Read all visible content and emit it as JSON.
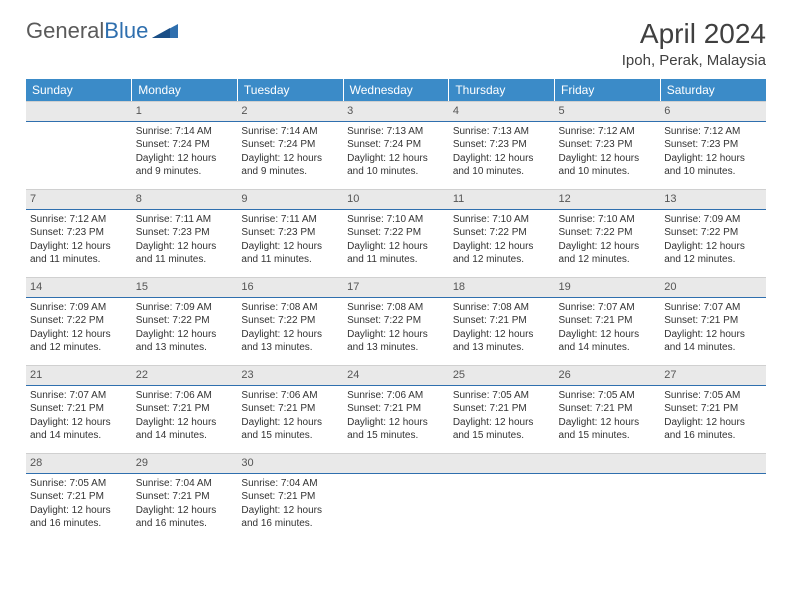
{
  "logo": {
    "text_a": "General",
    "text_b": "Blue"
  },
  "title": "April 2024",
  "location": "Ipoh, Perak, Malaysia",
  "colors": {
    "header_bg": "#3b8bc8",
    "daynum_bg": "#e9e9e9",
    "day_border": "#2f6fae",
    "text": "#333333"
  },
  "day_headers": [
    "Sunday",
    "Monday",
    "Tuesday",
    "Wednesday",
    "Thursday",
    "Friday",
    "Saturday"
  ],
  "weeks": [
    [
      {
        "n": "",
        "sr": "",
        "ss": "",
        "dl": ""
      },
      {
        "n": "1",
        "sr": "Sunrise: 7:14 AM",
        "ss": "Sunset: 7:24 PM",
        "dl": "Daylight: 12 hours and 9 minutes."
      },
      {
        "n": "2",
        "sr": "Sunrise: 7:14 AM",
        "ss": "Sunset: 7:24 PM",
        "dl": "Daylight: 12 hours and 9 minutes."
      },
      {
        "n": "3",
        "sr": "Sunrise: 7:13 AM",
        "ss": "Sunset: 7:24 PM",
        "dl": "Daylight: 12 hours and 10 minutes."
      },
      {
        "n": "4",
        "sr": "Sunrise: 7:13 AM",
        "ss": "Sunset: 7:23 PM",
        "dl": "Daylight: 12 hours and 10 minutes."
      },
      {
        "n": "5",
        "sr": "Sunrise: 7:12 AM",
        "ss": "Sunset: 7:23 PM",
        "dl": "Daylight: 12 hours and 10 minutes."
      },
      {
        "n": "6",
        "sr": "Sunrise: 7:12 AM",
        "ss": "Sunset: 7:23 PM",
        "dl": "Daylight: 12 hours and 10 minutes."
      }
    ],
    [
      {
        "n": "7",
        "sr": "Sunrise: 7:12 AM",
        "ss": "Sunset: 7:23 PM",
        "dl": "Daylight: 12 hours and 11 minutes."
      },
      {
        "n": "8",
        "sr": "Sunrise: 7:11 AM",
        "ss": "Sunset: 7:23 PM",
        "dl": "Daylight: 12 hours and 11 minutes."
      },
      {
        "n": "9",
        "sr": "Sunrise: 7:11 AM",
        "ss": "Sunset: 7:23 PM",
        "dl": "Daylight: 12 hours and 11 minutes."
      },
      {
        "n": "10",
        "sr": "Sunrise: 7:10 AM",
        "ss": "Sunset: 7:22 PM",
        "dl": "Daylight: 12 hours and 11 minutes."
      },
      {
        "n": "11",
        "sr": "Sunrise: 7:10 AM",
        "ss": "Sunset: 7:22 PM",
        "dl": "Daylight: 12 hours and 12 minutes."
      },
      {
        "n": "12",
        "sr": "Sunrise: 7:10 AM",
        "ss": "Sunset: 7:22 PM",
        "dl": "Daylight: 12 hours and 12 minutes."
      },
      {
        "n": "13",
        "sr": "Sunrise: 7:09 AM",
        "ss": "Sunset: 7:22 PM",
        "dl": "Daylight: 12 hours and 12 minutes."
      }
    ],
    [
      {
        "n": "14",
        "sr": "Sunrise: 7:09 AM",
        "ss": "Sunset: 7:22 PM",
        "dl": "Daylight: 12 hours and 12 minutes."
      },
      {
        "n": "15",
        "sr": "Sunrise: 7:09 AM",
        "ss": "Sunset: 7:22 PM",
        "dl": "Daylight: 12 hours and 13 minutes."
      },
      {
        "n": "16",
        "sr": "Sunrise: 7:08 AM",
        "ss": "Sunset: 7:22 PM",
        "dl": "Daylight: 12 hours and 13 minutes."
      },
      {
        "n": "17",
        "sr": "Sunrise: 7:08 AM",
        "ss": "Sunset: 7:22 PM",
        "dl": "Daylight: 12 hours and 13 minutes."
      },
      {
        "n": "18",
        "sr": "Sunrise: 7:08 AM",
        "ss": "Sunset: 7:21 PM",
        "dl": "Daylight: 12 hours and 13 minutes."
      },
      {
        "n": "19",
        "sr": "Sunrise: 7:07 AM",
        "ss": "Sunset: 7:21 PM",
        "dl": "Daylight: 12 hours and 14 minutes."
      },
      {
        "n": "20",
        "sr": "Sunrise: 7:07 AM",
        "ss": "Sunset: 7:21 PM",
        "dl": "Daylight: 12 hours and 14 minutes."
      }
    ],
    [
      {
        "n": "21",
        "sr": "Sunrise: 7:07 AM",
        "ss": "Sunset: 7:21 PM",
        "dl": "Daylight: 12 hours and 14 minutes."
      },
      {
        "n": "22",
        "sr": "Sunrise: 7:06 AM",
        "ss": "Sunset: 7:21 PM",
        "dl": "Daylight: 12 hours and 14 minutes."
      },
      {
        "n": "23",
        "sr": "Sunrise: 7:06 AM",
        "ss": "Sunset: 7:21 PM",
        "dl": "Daylight: 12 hours and 15 minutes."
      },
      {
        "n": "24",
        "sr": "Sunrise: 7:06 AM",
        "ss": "Sunset: 7:21 PM",
        "dl": "Daylight: 12 hours and 15 minutes."
      },
      {
        "n": "25",
        "sr": "Sunrise: 7:05 AM",
        "ss": "Sunset: 7:21 PM",
        "dl": "Daylight: 12 hours and 15 minutes."
      },
      {
        "n": "26",
        "sr": "Sunrise: 7:05 AM",
        "ss": "Sunset: 7:21 PM",
        "dl": "Daylight: 12 hours and 15 minutes."
      },
      {
        "n": "27",
        "sr": "Sunrise: 7:05 AM",
        "ss": "Sunset: 7:21 PM",
        "dl": "Daylight: 12 hours and 16 minutes."
      }
    ],
    [
      {
        "n": "28",
        "sr": "Sunrise: 7:05 AM",
        "ss": "Sunset: 7:21 PM",
        "dl": "Daylight: 12 hours and 16 minutes."
      },
      {
        "n": "29",
        "sr": "Sunrise: 7:04 AM",
        "ss": "Sunset: 7:21 PM",
        "dl": "Daylight: 12 hours and 16 minutes."
      },
      {
        "n": "30",
        "sr": "Sunrise: 7:04 AM",
        "ss": "Sunset: 7:21 PM",
        "dl": "Daylight: 12 hours and 16 minutes."
      },
      {
        "n": "",
        "sr": "",
        "ss": "",
        "dl": ""
      },
      {
        "n": "",
        "sr": "",
        "ss": "",
        "dl": ""
      },
      {
        "n": "",
        "sr": "",
        "ss": "",
        "dl": ""
      },
      {
        "n": "",
        "sr": "",
        "ss": "",
        "dl": ""
      }
    ]
  ]
}
